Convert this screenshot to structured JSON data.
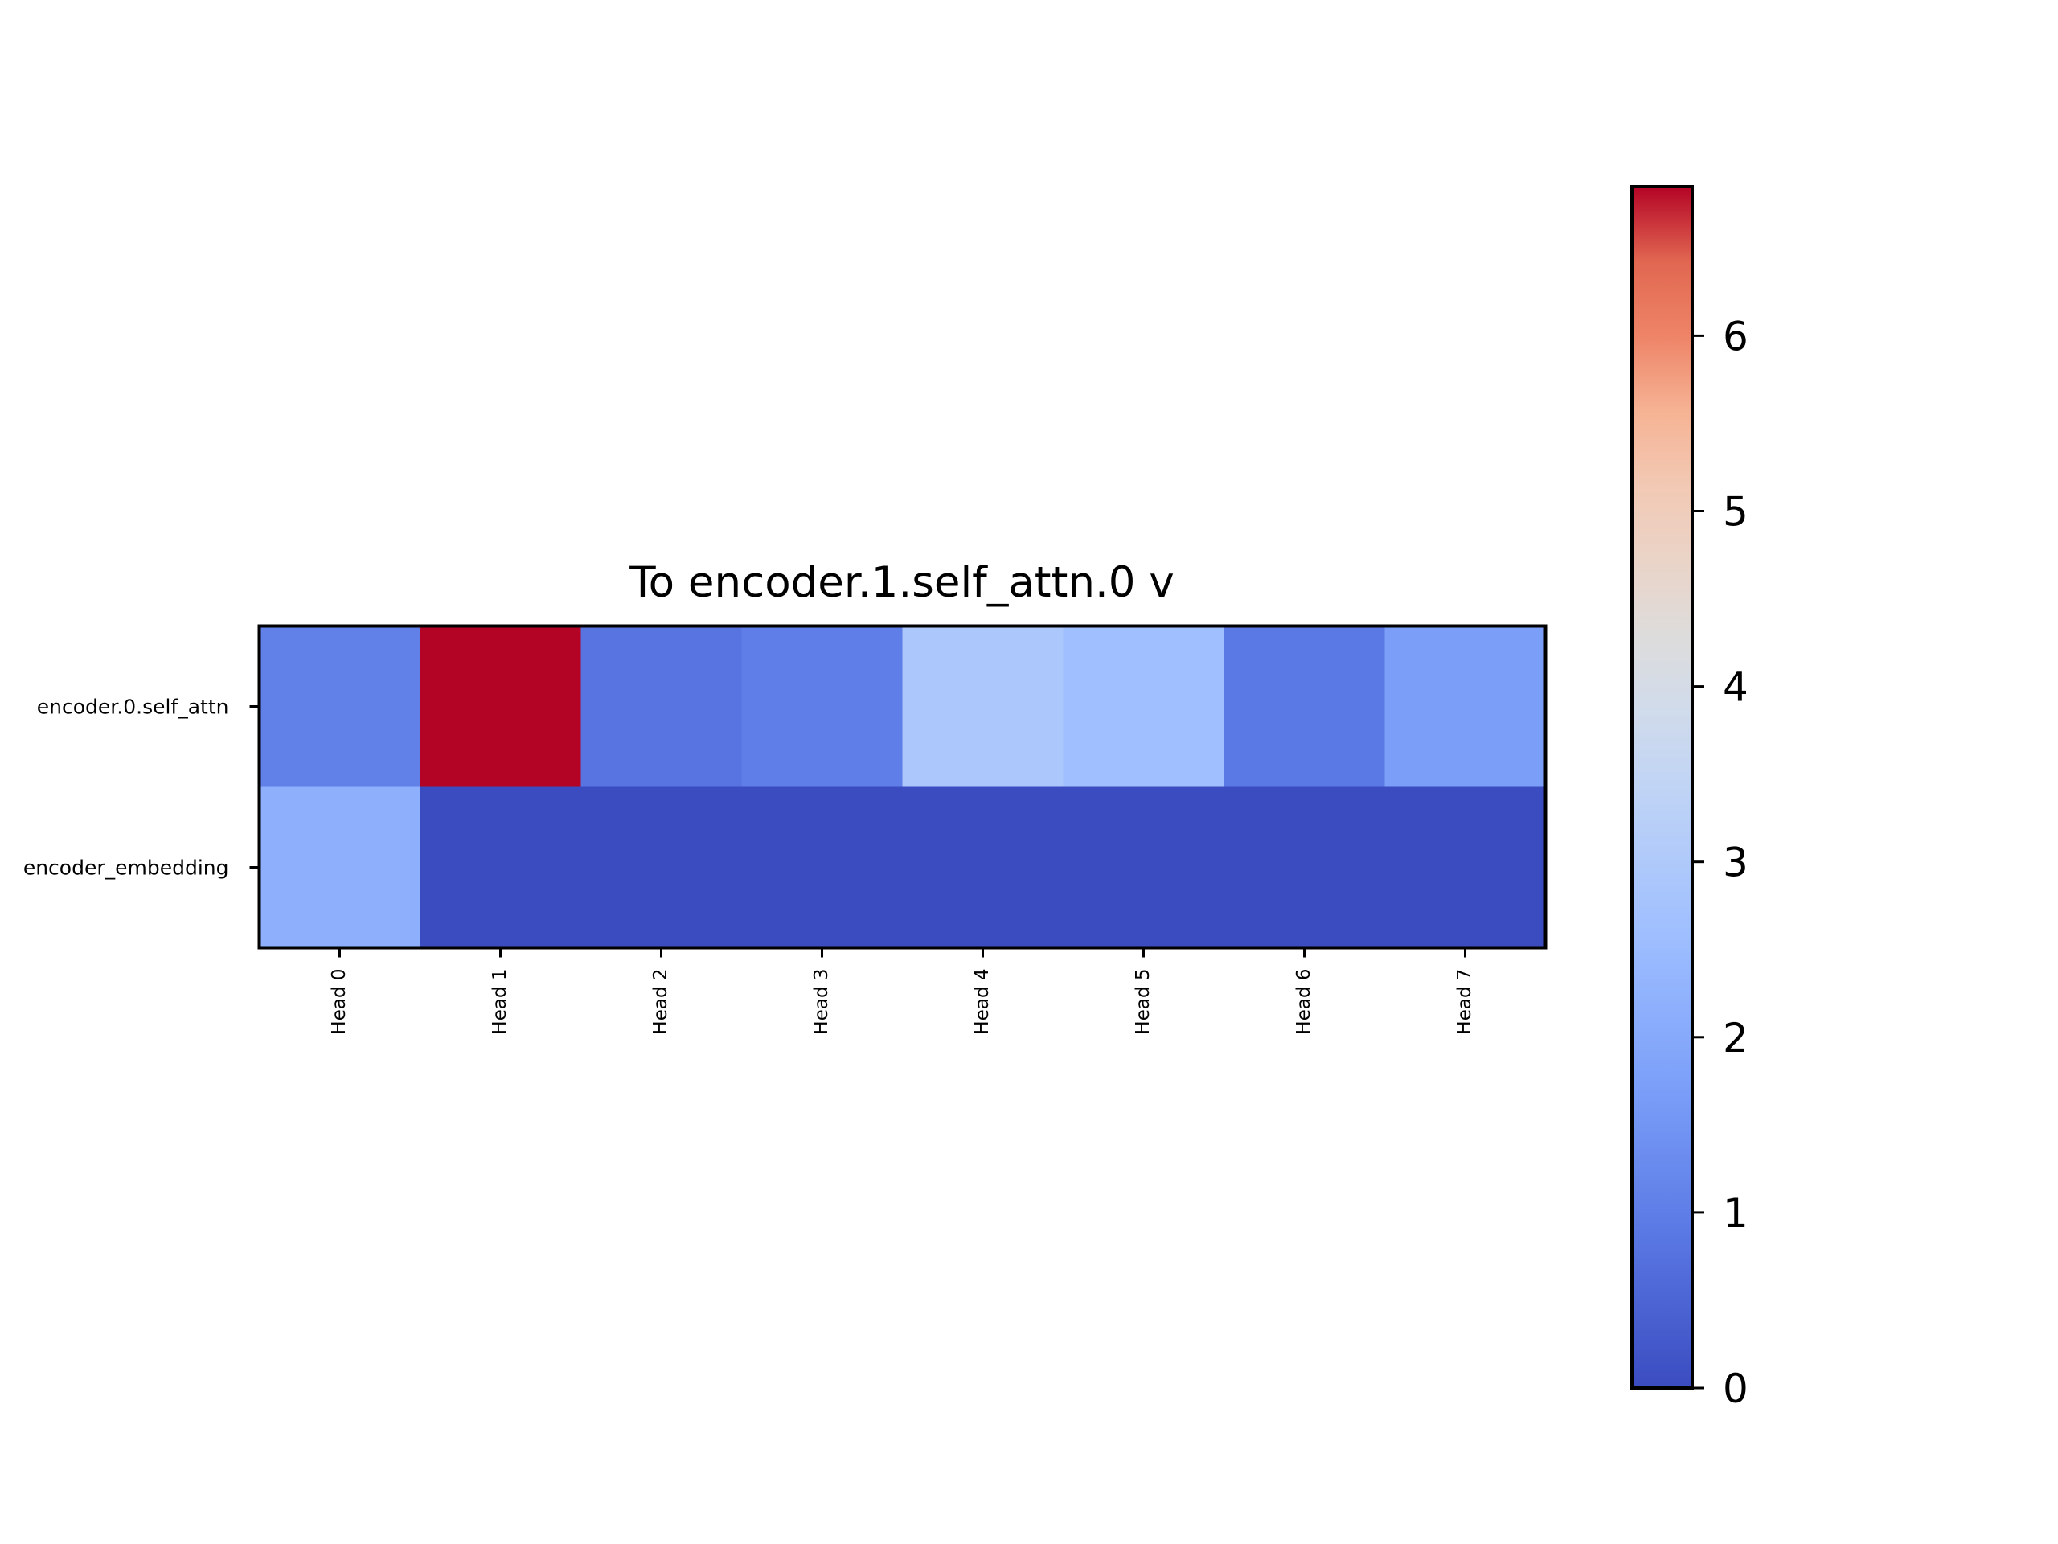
{
  "chart_data": {
    "type": "heatmap",
    "title": "To encoder.1.self_attn.0 v",
    "xlabel": "",
    "ylabel": "",
    "x_categories": [
      "Head 0",
      "Head 1",
      "Head 2",
      "Head 3",
      "Head 4",
      "Head 5",
      "Head 6",
      "Head 7"
    ],
    "y_categories": [
      "encoder.0.self_attn",
      "encoder_embedding"
    ],
    "values": [
      [
        1.05,
        6.85,
        0.8,
        1.0,
        2.9,
        2.6,
        0.9,
        1.7
      ],
      [
        2.15,
        0.0,
        0.0,
        0.0,
        0.0,
        0.0,
        0.0,
        0.0
      ]
    ],
    "colormap": "coolwarm",
    "colorbar": {
      "vmin": 0,
      "vmax": 6.85,
      "ticks": [
        0,
        1,
        2,
        3,
        4,
        5,
        6
      ]
    },
    "grid": false
  }
}
